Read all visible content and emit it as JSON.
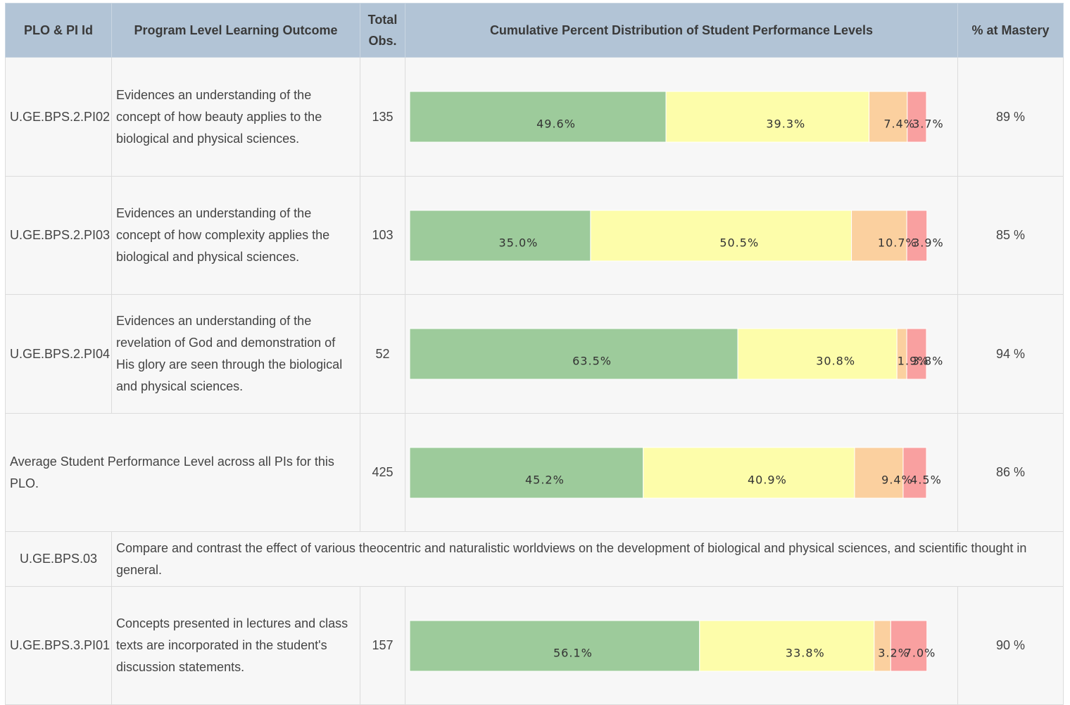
{
  "header": [
    "PLO & PI Id",
    "Program Level Learning Outcome",
    "Total Obs.",
    "Cumulative Percent Distribution of Student Performance Levels",
    "% at Mastery"
  ],
  "rows": [
    {
      "id": "U.GE.BPS.2.PI02",
      "outcome": "Evidences an understanding of the concept of how beauty applies to the biological and physical sciences.",
      "total": 135,
      "distribution": {
        "values": [
          49.6,
          39.3,
          7.4,
          3.7
        ],
        "value_labels": [
          "49.6%",
          "39.3%",
          "7.4%",
          "3.7%"
        ]
      },
      "mastery": "89 %"
    },
    {
      "id": "U.GE.BPS.2.PI03",
      "outcome": "Evidences an understanding of the concept of how complexity applies the biological and physical sciences.",
      "total": 103,
      "distribution": {
        "values": [
          35.0,
          50.5,
          10.7,
          3.9
        ],
        "value_labels": [
          "35.0%",
          "50.5%",
          "10.7%",
          "3.9%"
        ]
      },
      "mastery": "85 %"
    },
    {
      "id": "U.GE.BPS.2.PI04",
      "outcome": "Evidences an understanding of the revelation of God and demonstration of His glory are seen through the biological and physical sciences.",
      "total": 52,
      "distribution": {
        "values": [
          63.5,
          30.8,
          1.9,
          3.8
        ],
        "value_labels": [
          "63.5%",
          "30.8%",
          "1.9%",
          "3.8%"
        ]
      },
      "mastery": "94 %"
    },
    {
      "outcome": "Average Student Performance Level across all PIs for this PLO.",
      "total": 425,
      "distribution": {
        "values": [
          45.2,
          40.9,
          9.4,
          4.5
        ],
        "value_labels": [
          "45.2%",
          "40.9%",
          "9.4%",
          "4.5%"
        ]
      },
      "mastery": "86 %"
    },
    {
      "id": "U.GE.BPS.03",
      "outcome": "Compare and contrast the effect of various theocentric and naturalistic worldviews on the development of biological and physical sciences, and scientific thought in general."
    },
    {
      "id": "U.GE.BPS.3.PI01",
      "outcome": "Concepts presented in lectures and class texts are incorporated in the student's discussion statements.",
      "total": 157,
      "distribution": {
        "values": [
          56.1,
          33.8,
          3.2,
          7.0
        ],
        "value_labels": [
          "56.1%",
          "33.8%",
          "3.2%",
          "7.0%"
        ]
      },
      "mastery": "90 %"
    }
  ],
  "colors": [
    "#9dcb9b",
    "#fdfdaa",
    "#fbd09f",
    "#f9a0a0"
  ]
}
